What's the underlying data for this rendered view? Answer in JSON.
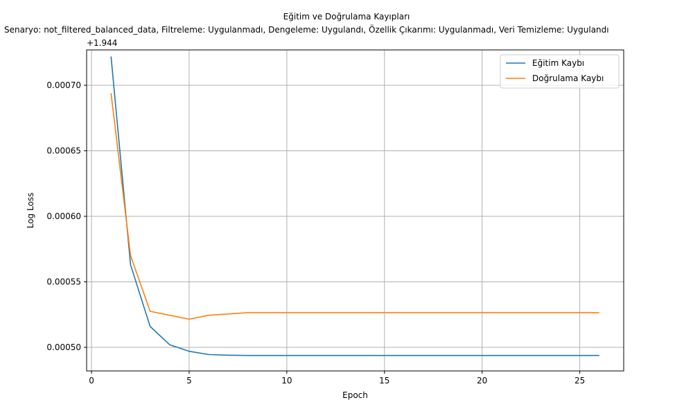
{
  "chart_data": {
    "type": "line",
    "title": "Eğitim ve Doğrulama Kayıpları",
    "subtitle": "Senaryo: not_filtered_balanced_data, Filtreleme: Uygulanmadı, Dengeleme: Uygulandı, Özellik Çıkarımı: Uygulanmadı, Veri Temizleme: Uygulandı",
    "xlabel": "Epoch",
    "ylabel": "Log Loss",
    "y_offset_label": "+1.944",
    "y_offset": 1.944,
    "xlim": [
      -0.25,
      27.25
    ],
    "ylim": [
      0.000482,
      0.000727
    ],
    "xticks": [
      0,
      5,
      10,
      15,
      20,
      25
    ],
    "yticks": [
      0.0005,
      0.00055,
      0.0006,
      0.00065,
      0.0007
    ],
    "ytick_labels": [
      "0.00050",
      "0.00055",
      "0.00060",
      "0.00065",
      "0.00070"
    ],
    "grid": true,
    "legend_position": "top-right",
    "x": [
      1,
      2,
      3,
      4,
      5,
      6,
      7,
      8,
      9,
      10,
      11,
      12,
      13,
      14,
      15,
      16,
      17,
      18,
      19,
      20,
      21,
      22,
      23,
      24,
      25,
      26
    ],
    "series": [
      {
        "name": "Eğitim Kaybı",
        "color": "#1f77b4",
        "values": [
          0.000722,
          0.000563,
          0.000516,
          0.000502,
          0.000497,
          0.0004945,
          0.000494,
          0.0004938,
          0.0004938,
          0.0004938,
          0.0004938,
          0.0004938,
          0.0004938,
          0.0004938,
          0.0004938,
          0.0004938,
          0.0004938,
          0.0004938,
          0.0004938,
          0.0004938,
          0.0004938,
          0.0004938,
          0.0004938,
          0.0004938,
          0.0004938,
          0.0004938
        ]
      },
      {
        "name": "Doğrulama Kaybı",
        "color": "#ff7f0e",
        "values": [
          0.000694,
          0.00057,
          0.0005275,
          0.0005245,
          0.0005215,
          0.0005245,
          0.0005255,
          0.0005265,
          0.0005265,
          0.0005265,
          0.0005265,
          0.0005265,
          0.0005265,
          0.0005265,
          0.0005265,
          0.0005265,
          0.0005265,
          0.0005265,
          0.0005265,
          0.0005265,
          0.0005265,
          0.0005265,
          0.0005265,
          0.0005265,
          0.0005265,
          0.0005265
        ]
      }
    ]
  }
}
